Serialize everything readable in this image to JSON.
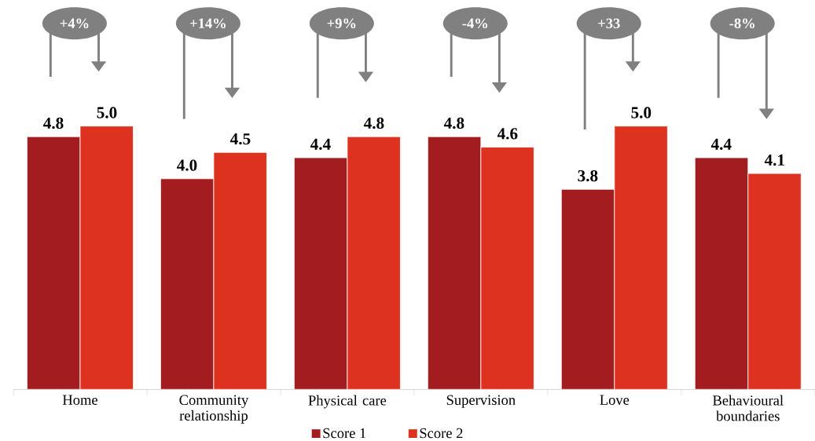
{
  "chart_data": {
    "type": "bar",
    "categories": [
      "Home",
      "Community relationship",
      "Physical care",
      "Supervision",
      "Love",
      "Behavioural boundaries"
    ],
    "series": [
      {
        "name": "Score 1",
        "color": "#a31c20",
        "values": [
          4.8,
          4.0,
          4.4,
          4.8,
          3.8,
          4.4
        ],
        "value_labels": [
          "4.8",
          "4.0",
          "4.4",
          "4.8",
          "3.8",
          "4.4"
        ]
      },
      {
        "name": "Score 2",
        "color": "#dd3220",
        "values": [
          5.0,
          4.5,
          4.8,
          4.6,
          5.0,
          4.1
        ],
        "value_labels": [
          "5.0",
          "4.5",
          "4.8",
          "4.6",
          "5.0",
          "4.1"
        ]
      }
    ],
    "legend": "bottom",
    "annotations": [
      "+4%",
      "+14%",
      "+9%",
      "-4%",
      "+33",
      "-8%"
    ]
  }
}
